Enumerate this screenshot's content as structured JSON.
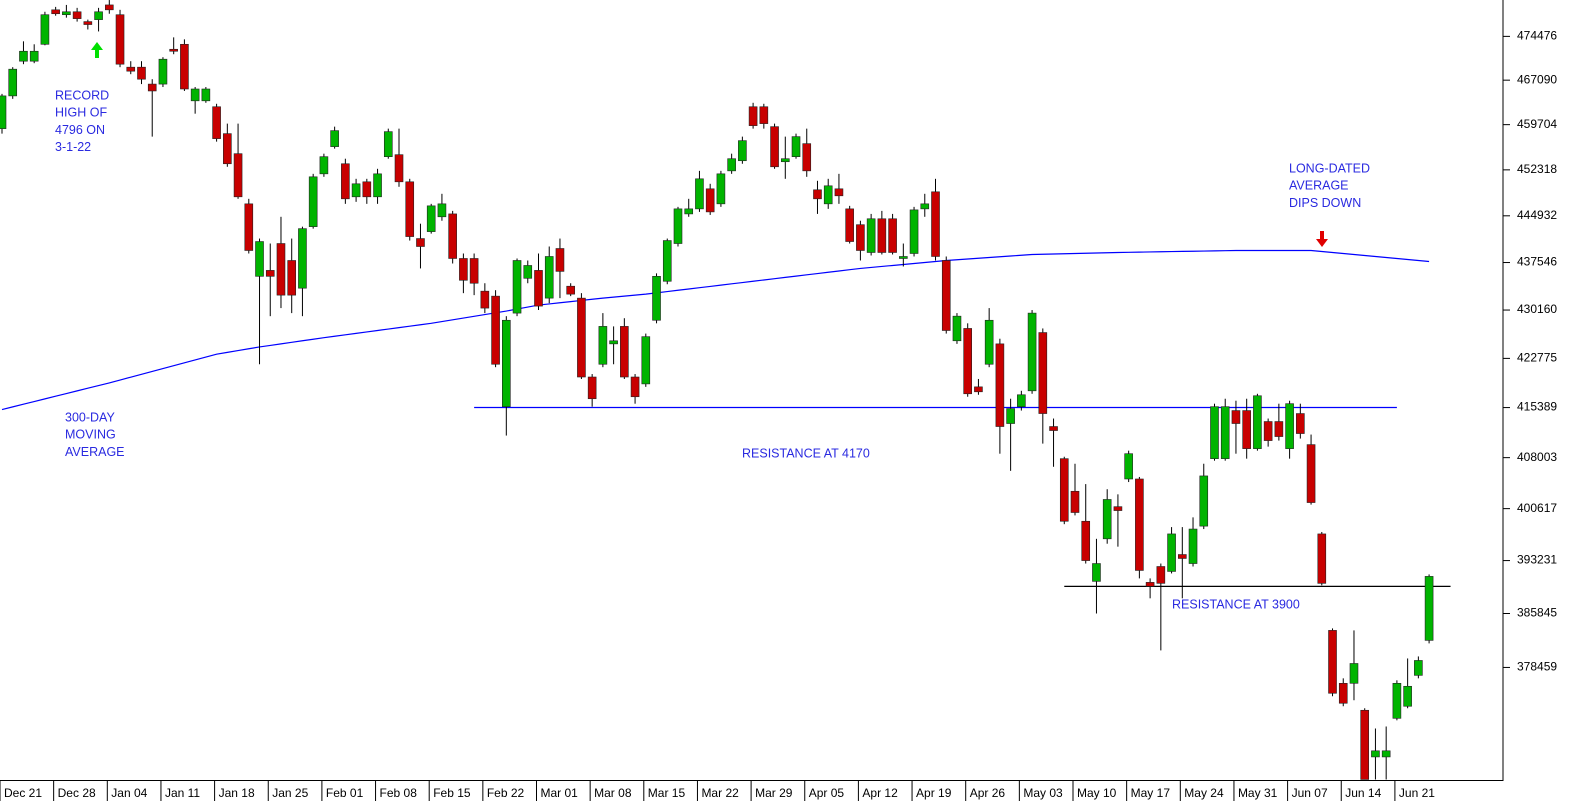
{
  "chart_data": {
    "type": "candlestick",
    "log_scale": true,
    "up_color": "#00b400",
    "down_color": "#c80000",
    "ylim": [
      363500,
      480700
    ],
    "yticks": [
      474476,
      467090,
      459704,
      452318,
      444932,
      437546,
      430160,
      422775,
      415389,
      408003,
      400617,
      393231,
      385845,
      378459
    ],
    "categories": [
      "Dec 21",
      null,
      null,
      null,
      null,
      "Dec 28",
      null,
      null,
      null,
      null,
      "Jan 04",
      null,
      null,
      null,
      null,
      "Jan 11",
      null,
      null,
      null,
      null,
      "Jan 18",
      null,
      null,
      null,
      null,
      "Jan 25",
      null,
      null,
      null,
      null,
      "Feb 01",
      null,
      null,
      null,
      null,
      "Feb 08",
      null,
      null,
      null,
      null,
      "Feb 15",
      null,
      null,
      null,
      null,
      "Feb 22",
      null,
      null,
      null,
      null,
      "Mar 01",
      null,
      null,
      null,
      null,
      "Mar 08",
      null,
      null,
      null,
      null,
      "Mar 15",
      null,
      null,
      null,
      null,
      "Mar 22",
      null,
      null,
      null,
      null,
      "Mar 29",
      null,
      null,
      null,
      null,
      "Apr 05",
      null,
      null,
      null,
      null,
      "Apr 12",
      null,
      null,
      null,
      null,
      "Apr 19",
      null,
      null,
      null,
      null,
      "Apr 26",
      null,
      null,
      null,
      null,
      "May 03",
      null,
      null,
      null,
      null,
      "May 10",
      null,
      null,
      null,
      null,
      "May 17",
      null,
      null,
      null,
      null,
      "May 24",
      null,
      null,
      null,
      null,
      "May 31",
      null,
      null,
      null,
      null,
      "Jun 07",
      null,
      null,
      null,
      null,
      "Jun 14",
      null,
      null,
      null,
      null,
      "Jun 21",
      null,
      null,
      null
    ],
    "open": [
      459048,
      464466,
      470276,
      470276,
      473132,
      479012,
      478172,
      478676,
      476996,
      477332,
      479852,
      478172,
      469268,
      469268,
      466434,
      466434,
      472292,
      473132,
      463646,
      463646,
      462662,
      458228,
      454948,
      446844,
      435390,
      436314,
      440536,
      437867,
      433542,
      443205,
      451674,
      456096,
      453308,
      447971,
      450386,
      447971,
      454456,
      454784,
      450386,
      441321,
      442420,
      444775,
      445235,
      438181,
      438181,
      433080,
      432310,
      415523,
      429689,
      435082,
      436314,
      432002,
      439751,
      433850,
      432002,
      419963,
      421887,
      424979,
      427648,
      419963,
      418927,
      428590,
      434620,
      440536,
      445235,
      446040,
      449259,
      446844,
      452157,
      453800,
      462662,
      462662,
      459376,
      453636,
      454456,
      456588,
      449098,
      446844,
      449259,
      446040,
      443519,
      439123,
      444461,
      444461,
      438181,
      438966,
      446040,
      448776,
      437867,
      425450,
      427334,
      418483,
      421887,
      424979,
      413021,
      415523,
      417891,
      426706,
      412577,
      407855,
      403119,
      398810,
      390312,
      396308,
      400899,
      404895,
      404895,
      390173,
      392397,
      391702,
      394084,
      392814,
      398115,
      407855,
      407855,
      414945,
      414945,
      409321,
      413317,
      413317,
      409321,
      414501,
      409913,
      397003,
      383516,
      376315,
      376315,
      372697,
      366517,
      366517,
      371625,
      373233,
      377387,
      382146
    ],
    "high": [
      464794,
      469268,
      473636,
      473132,
      478676,
      479516,
      479852,
      479348,
      477332,
      479348,
      480692,
      479012,
      470276,
      470276,
      467252,
      470948,
      474308,
      473972,
      465942,
      465942,
      463154,
      459874,
      459874,
      447649,
      441321,
      440536,
      444775,
      441321,
      443205,
      451674,
      454948,
      459376,
      454128,
      450869,
      450869,
      452488,
      459048,
      459048,
      450869,
      443676,
      446844,
      448454,
      445718,
      438966,
      438966,
      434312,
      433234,
      429218,
      438181,
      437867,
      438966,
      440065,
      441321,
      434312,
      432772,
      420407,
      429689,
      427648,
      428904,
      420407,
      426549,
      435852,
      441321,
      446361,
      447649,
      452157,
      450064,
      452157,
      454948,
      457736,
      463318,
      463154,
      459874,
      457736,
      458228,
      459048,
      450547,
      450869,
      451674,
      446522,
      444147,
      445235,
      445718,
      445235,
      440536,
      446361,
      448454,
      450869,
      438495,
      429689,
      428119,
      419667,
      430462,
      425764,
      416707,
      417891,
      430160,
      427334,
      413761,
      408137,
      407115,
      404155,
      396308,
      403415,
      402675,
      409025,
      405191,
      390729,
      392814,
      397976,
      397976,
      399366,
      407115,
      415967,
      416707,
      416411,
      416707,
      417447,
      413761,
      415967,
      416411,
      415967,
      411393,
      397281,
      383790,
      376985,
      383516,
      372965,
      370269,
      370537,
      376717,
      379680,
      379954,
      391285
    ],
    "low": [
      458228,
      463974,
      469772,
      469940,
      472964,
      478004,
      477668,
      476996,
      475652,
      475316,
      478340,
      469268,
      468092,
      466434,
      457736,
      465942,
      471452,
      465286,
      461514,
      463318,
      456916,
      452816,
      447649,
      438966,
      421887,
      429218,
      430462,
      429689,
      429218,
      442891,
      451191,
      455768,
      446844,
      447166,
      446844,
      446844,
      454128,
      449581,
      441007,
      436622,
      442106,
      444147,
      437392,
      432772,
      432464,
      429689,
      421443,
      411245,
      429218,
      434312,
      430160,
      431232,
      432002,
      432310,
      419667,
      415523,
      421443,
      421887,
      419667,
      415967,
      418483,
      428119,
      434158,
      440065,
      444775,
      445557,
      445074,
      446361,
      451674,
      453308,
      459048,
      459048,
      452488,
      450869,
      454128,
      451191,
      445235,
      446040,
      446844,
      440536,
      437867,
      438652,
      438809,
      438809,
      436930,
      438495,
      444775,
      437867,
      426549,
      424979,
      417003,
      417299,
      421443,
      408581,
      406079,
      414945,
      417447,
      410061,
      406671,
      398393,
      399644,
      392814,
      385845,
      395613,
      395196,
      404451,
      390729,
      387949,
      380776,
      391424,
      387949,
      392397,
      397698,
      407559,
      407559,
      408581,
      407855,
      409025,
      409617,
      410505,
      407855,
      410801,
      401195,
      389756,
      374573,
      373233,
      374037,
      363569,
      363569,
      363569,
      371357,
      372965,
      376985,
      381735
    ],
    "close": [
      464466,
      468932,
      471956,
      471956,
      478172,
      478340,
      478676,
      477500,
      476492,
      478676,
      479012,
      469772,
      468596,
      467252,
      465286,
      470612,
      471956,
      465614,
      465614,
      465614,
      457408,
      453308,
      447971,
      439437,
      440850,
      435390,
      432464,
      432464,
      442891,
      451191,
      454456,
      458720,
      447649,
      450064,
      447971,
      451674,
      458556,
      450386,
      441635,
      440065,
      446522,
      446844,
      438181,
      434774,
      434312,
      430462,
      421887,
      428590,
      437867,
      437084,
      430770,
      438495,
      436160,
      432618,
      419963,
      416707,
      427648,
      425450,
      419963,
      417003,
      426078,
      435390,
      441007,
      446040,
      446040,
      450869,
      445557,
      451674,
      454128,
      457080,
      459540,
      459874,
      452816,
      454128,
      457736,
      452157,
      447649,
      449742,
      448132,
      440850,
      439437,
      444461,
      439123,
      439123,
      438495,
      445879,
      446844,
      438495,
      427020,
      429218,
      417447,
      417743,
      428590,
      412577,
      415241,
      417299,
      429689,
      414501,
      411985,
      398810,
      400061,
      393231,
      392814,
      401935,
      400339,
      408581,
      391841,
      389617,
      390034,
      397003,
      393528,
      397698,
      405339,
      415523,
      415523,
      413021,
      409321,
      417151,
      410505,
      411097,
      415967,
      411541,
      401491,
      390034,
      374975,
      373635,
      378995,
      363569,
      367321,
      367321,
      376315,
      375913,
      379406,
      391007
    ],
    "moving_average": {
      "color": "#0000ff",
      "values": [
        415093,
        415491,
        415889,
        416288,
        416686,
        417084,
        417482,
        417880,
        418279,
        418677,
        419075,
        419508,
        419942,
        420375,
        420808,
        421242,
        421675,
        422109,
        422542,
        422976,
        423409,
        423684,
        423959,
        424233,
        424508,
        424744,
        424979,
        425215,
        425450,
        425686,
        425921,
        426141,
        426361,
        426580,
        426800,
        427020,
        427240,
        427460,
        427679,
        427899,
        428119,
        428388,
        428657,
        428926,
        429195,
        429465,
        429734,
        430003,
        430310,
        430617,
        430924,
        431104,
        431283,
        431463,
        431643,
        431822,
        432002,
        432156,
        432310,
        432464,
        432618,
        432818,
        433018,
        433219,
        433419,
        433619,
        433819,
        434019,
        434220,
        434420,
        434620,
        434820,
        435020,
        435221,
        435421,
        435621,
        435821,
        436021,
        436222,
        436422,
        436622,
        436777,
        436932,
        437086,
        437241,
        437396,
        437551,
        437705,
        437860,
        437979,
        438097,
        438216,
        438335,
        438453,
        438572,
        438690,
        438809,
        438848,
        438888,
        438927,
        438966,
        439005,
        439045,
        439084,
        439123,
        439152,
        439180,
        439209,
        439237,
        439266,
        439294,
        439323,
        439351,
        439380,
        439408,
        439437,
        439437,
        439437,
        439437,
        439437,
        439437,
        439437,
        439437,
        439280,
        439123,
        438966,
        438809,
        438651,
        438493,
        438335,
        438177,
        438019,
        437861,
        437703
      ]
    },
    "reference_lines": [
      {
        "value": 415400,
        "x_range": [
          44,
          130
        ],
        "color": "#0000ff",
        "label": "RESISTANCE AT 4170"
      },
      {
        "value": 389617,
        "x_range": [
          99,
          135
        ],
        "color": "#000000",
        "label": "RESISTANCE AT 3900"
      }
    ],
    "annotations": [
      {
        "lines": [
          "RECORD",
          "HIGH OF",
          "4796 ON",
          "3-1-22"
        ]
      },
      {
        "lines": [
          "300-DAY",
          "MOVING",
          "AVERAGE"
        ]
      },
      {
        "lines": [
          "LONG-DATED",
          "AVERAGE",
          "DIPS DOWN"
        ]
      }
    ]
  }
}
